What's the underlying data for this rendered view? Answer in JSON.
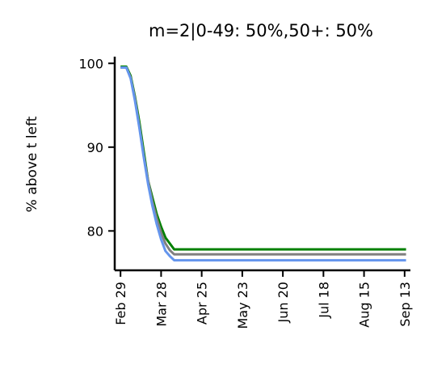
{
  "chart_data": {
    "type": "line",
    "title": "m=2|0-49: 50%,50+: 50%",
    "xlabel": "",
    "ylabel": "% above t left",
    "x_ticks": [
      "Feb 29",
      "Mar 28",
      "Apr 25",
      "May 23",
      "Jun 20",
      "Jul 18",
      "Aug 15",
      "Sep 13"
    ],
    "xlim": [
      "2020-02-25",
      "2020-09-16"
    ],
    "ylim": [
      75.3,
      100.8
    ],
    "y_ticks": [
      80,
      90,
      100
    ],
    "grid": false,
    "legend": "none",
    "series": [
      {
        "color": "#008000",
        "points": [
          [
            "2020-02-29",
            99.6
          ],
          [
            "2020-03-04",
            99.6
          ],
          [
            "2020-03-07",
            98.5
          ],
          [
            "2020-03-10",
            96.0
          ],
          [
            "2020-03-13",
            93.0
          ],
          [
            "2020-03-16",
            89.5
          ],
          [
            "2020-03-19",
            86.0
          ],
          [
            "2020-03-22",
            84.0
          ],
          [
            "2020-03-25",
            82.0
          ],
          [
            "2020-03-28",
            80.5
          ],
          [
            "2020-03-31",
            79.2
          ],
          [
            "2020-04-03",
            78.5
          ],
          [
            "2020-04-06",
            77.8
          ],
          [
            "2020-09-13",
            77.8
          ]
        ]
      },
      {
        "color": "#808080",
        "points": [
          [
            "2020-02-29",
            99.5
          ],
          [
            "2020-03-04",
            99.5
          ],
          [
            "2020-03-07",
            98.3
          ],
          [
            "2020-03-10",
            95.8
          ],
          [
            "2020-03-13",
            92.5
          ],
          [
            "2020-03-16",
            89.0
          ],
          [
            "2020-03-19",
            86.0
          ],
          [
            "2020-03-22",
            83.5
          ],
          [
            "2020-03-25",
            81.5
          ],
          [
            "2020-03-28",
            79.8
          ],
          [
            "2020-03-31",
            78.5
          ],
          [
            "2020-04-03",
            77.7
          ],
          [
            "2020-04-06",
            77.2
          ],
          [
            "2020-09-13",
            77.2
          ]
        ]
      },
      {
        "color": "#6495ED",
        "points": [
          [
            "2020-02-29",
            99.5
          ],
          [
            "2020-03-04",
            99.5
          ],
          [
            "2020-03-07",
            98.2
          ],
          [
            "2020-03-10",
            95.5
          ],
          [
            "2020-03-13",
            92.3
          ],
          [
            "2020-03-16",
            88.8
          ],
          [
            "2020-03-19",
            85.6
          ],
          [
            "2020-03-22",
            83.0
          ],
          [
            "2020-03-25",
            80.8
          ],
          [
            "2020-03-28",
            79.0
          ],
          [
            "2020-03-31",
            77.6
          ],
          [
            "2020-04-03",
            77.0
          ],
          [
            "2020-04-06",
            76.5
          ],
          [
            "2020-09-13",
            76.5
          ]
        ]
      }
    ]
  }
}
